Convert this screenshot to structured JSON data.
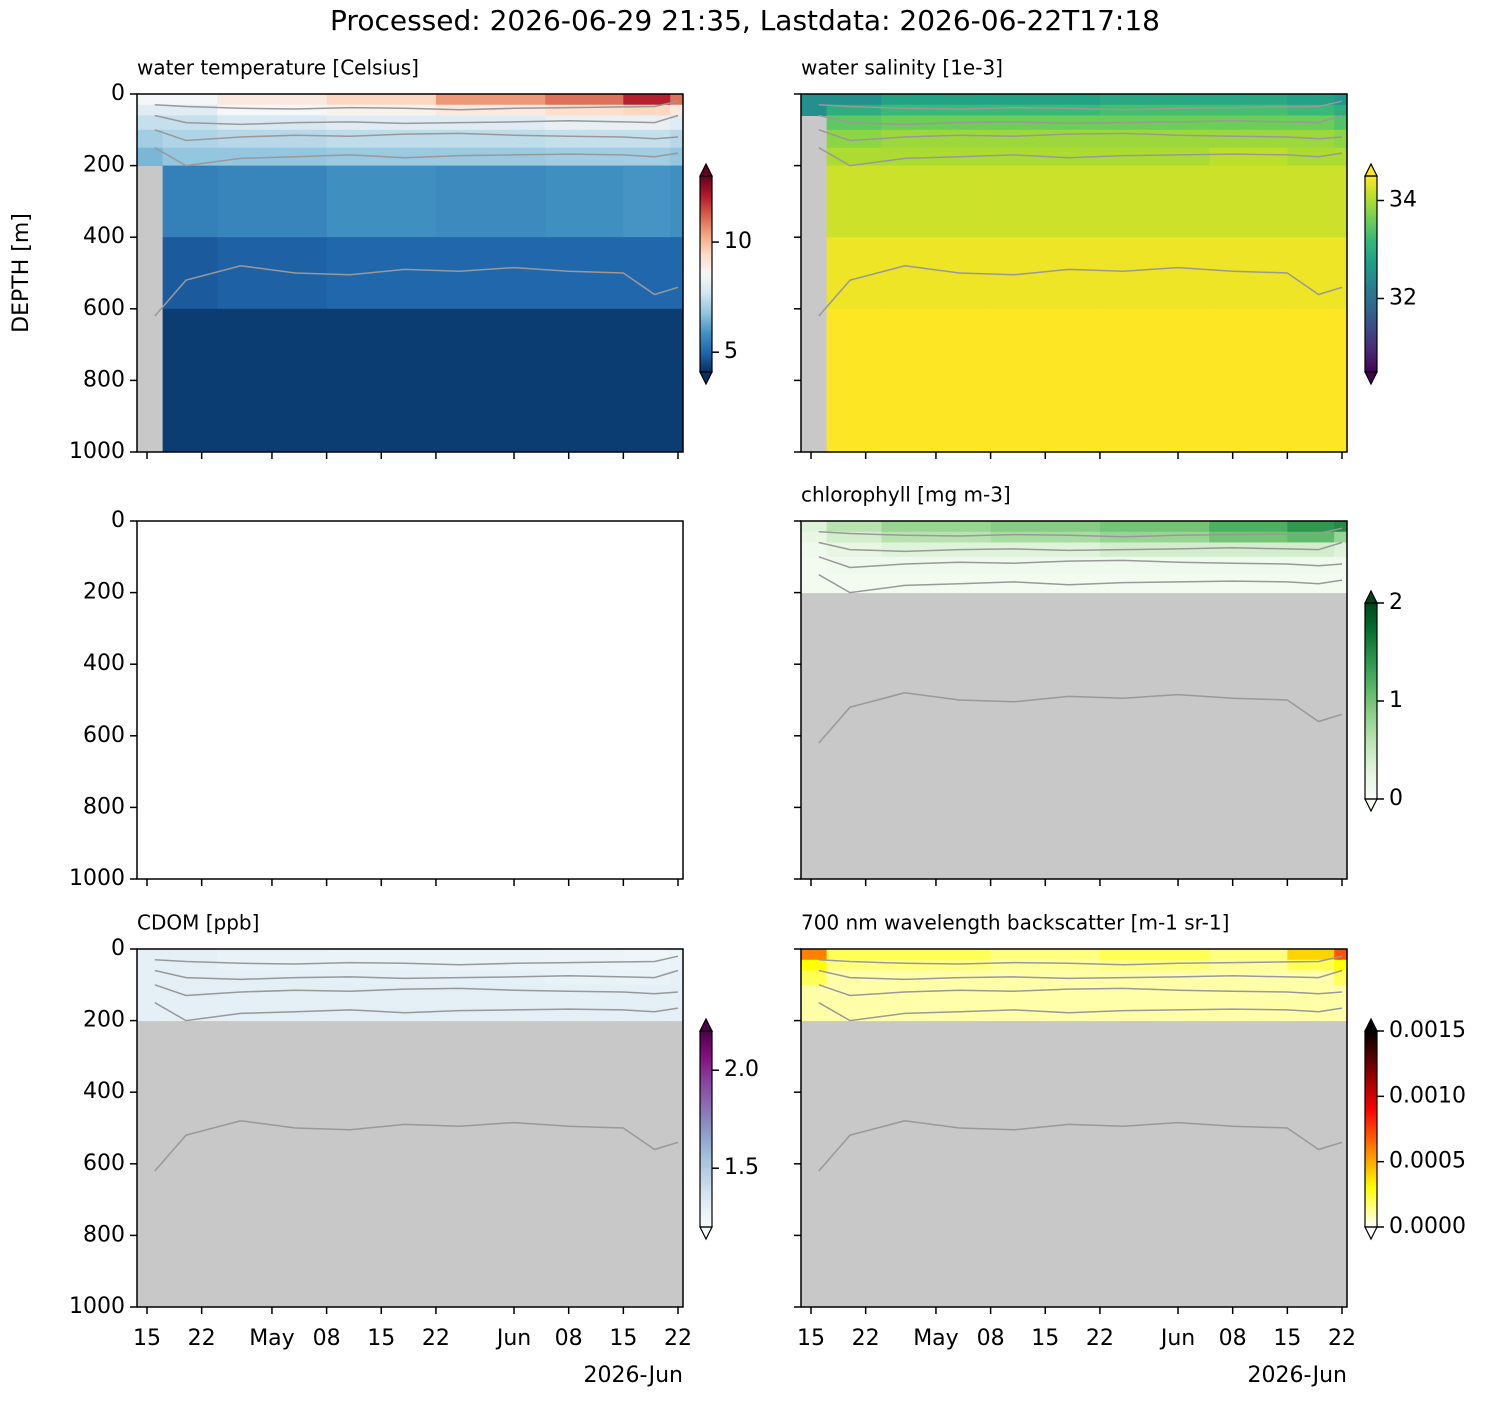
{
  "figure": {
    "title": "Processed: 2026-06-29 21:35, Lastdata: 2026-06-22T17:18",
    "ylabel": "DEPTH [m]",
    "x_offset_label": "2026-Jun",
    "xlim": [
      "2026-04-13T17:15",
      "2026-06-22T15:20"
    ],
    "xticks": [
      {
        "value": "2026-04-15",
        "label": "15"
      },
      {
        "value": "2026-04-22",
        "label": "22"
      },
      {
        "value": "2026-05-01",
        "label": "May"
      },
      {
        "value": "2026-05-08",
        "label": "08"
      },
      {
        "value": "2026-05-15",
        "label": "15"
      },
      {
        "value": "2026-05-22",
        "label": "22"
      },
      {
        "value": "2026-06-01",
        "label": "Jun"
      },
      {
        "value": "2026-06-08",
        "label": "08"
      },
      {
        "value": "2026-06-15",
        "label": "15"
      },
      {
        "value": "2026-06-22",
        "label": "22"
      }
    ],
    "ylim": [
      1000,
      0
    ],
    "yticks": [
      0,
      200,
      400,
      600,
      800,
      1000
    ],
    "x_edges": [
      "2026-04-13T17:15",
      "2026-04-17",
      "2026-04-24",
      "2026-05-08",
      "2026-05-22",
      "2026-06-05",
      "2026-06-15",
      "2026-06-21",
      "2026-06-22T15:20"
    ],
    "depth_edges": [
      0,
      30,
      60,
      100,
      150,
      200,
      400,
      600,
      1000
    ],
    "contour_color": "#999999",
    "contour_x": [
      "2026-04-16",
      "2026-04-20",
      "2026-04-27",
      "2026-05-04",
      "2026-05-11",
      "2026-05-18",
      "2026-05-25",
      "2026-06-01",
      "2026-06-08",
      "2026-06-15",
      "2026-06-19",
      "2026-06-22"
    ],
    "contours": [
      [
        30,
        35,
        40,
        42,
        38,
        40,
        44,
        40,
        38,
        36,
        35,
        20
      ],
      [
        60,
        80,
        85,
        80,
        78,
        82,
        80,
        78,
        75,
        78,
        80,
        60
      ],
      [
        100,
        130,
        120,
        115,
        118,
        112,
        110,
        115,
        118,
        120,
        125,
        120
      ],
      [
        150,
        200,
        180,
        175,
        170,
        178,
        172,
        170,
        168,
        170,
        175,
        165
      ],
      [
        620,
        520,
        480,
        500,
        505,
        490,
        495,
        485,
        495,
        500,
        560,
        540
      ]
    ]
  },
  "chart_data": [
    {
      "type": "heatmap",
      "title": "water temperature [Celsius]",
      "facecolor": "#c8c8c8",
      "extend": "both",
      "colormap": [
        "#053061",
        "#2166ac",
        "#4393c3",
        "#92c5de",
        "#d1e5f0",
        "#f7f7f7",
        "#fddbc7",
        "#f4a582",
        "#d6604d",
        "#b2182b",
        "#67001f"
      ],
      "clim": [
        4.1,
        13
      ],
      "cticks": [
        5,
        10
      ],
      "z": [
        [
          8.5,
          8.5,
          9,
          9.5,
          10.5,
          11,
          12,
          11
        ],
        [
          8,
          8,
          8.5,
          8.7,
          9,
          9.3,
          9.5,
          9
        ],
        [
          7.5,
          7.5,
          7.8,
          8,
          8,
          8.2,
          8.2,
          8
        ],
        [
          7,
          7.2,
          7.3,
          7.4,
          7.4,
          7.5,
          7.5,
          7.3
        ],
        [
          6.5,
          6.8,
          6.8,
          6.9,
          6.9,
          7,
          7,
          6.8
        ],
        [
          null,
          5.5,
          5.6,
          5.8,
          5.7,
          5.8,
          5.9,
          5.8
        ],
        [
          null,
          4.8,
          4.9,
          5,
          5,
          5,
          5,
          5
        ],
        [
          null,
          4.3,
          4.3,
          4.3,
          4.3,
          4.3,
          4.3,
          4.3
        ]
      ]
    },
    {
      "type": "heatmap",
      "title": "water salinity [1e-3]",
      "facecolor": "#c8c8c8",
      "extend": "both",
      "colormap": [
        "#440154",
        "#482878",
        "#3e4989",
        "#31688e",
        "#26828e",
        "#1f9e89",
        "#35b779",
        "#6ece58",
        "#b5de2b",
        "#fde725"
      ],
      "clim": [
        30.5,
        34.5
      ],
      "cticks": [
        32,
        34
      ],
      "z": [
        [
          32.5,
          32.5,
          32.8,
          32.8,
          32.9,
          32.9,
          32.8,
          32.6
        ],
        [
          32.5,
          33,
          33.2,
          33.2,
          33.3,
          33.3,
          33.2,
          33
        ],
        [
          null,
          33.5,
          33.6,
          33.6,
          33.6,
          33.6,
          33.6,
          33.4
        ],
        [
          null,
          33.8,
          33.9,
          33.9,
          33.9,
          33.9,
          33.9,
          33.8
        ],
        [
          null,
          34,
          34,
          34,
          34,
          34.1,
          34,
          34
        ],
        [
          null,
          34.2,
          34.2,
          34.2,
          34.2,
          34.2,
          34.2,
          34.2
        ],
        [
          null,
          34.4,
          34.4,
          34.4,
          34.4,
          34.4,
          34.4,
          34.4
        ],
        [
          null,
          34.6,
          34.6,
          34.6,
          34.6,
          34.6,
          34.6,
          34.6
        ]
      ]
    },
    {
      "type": "heatmap",
      "facecolor": "#ffffff"
    },
    {
      "type": "heatmap",
      "title": "chlorophyll [mg m-3]",
      "facecolor": "#c8c8c8",
      "extend": "both",
      "colormap": [
        "#f7fcf5",
        "#e5f5e0",
        "#c7e9c0",
        "#a1d99b",
        "#74c476",
        "#41ab5d",
        "#238b45",
        "#006d2c",
        "#00441b"
      ],
      "clim": [
        0,
        2
      ],
      "cticks": [
        0,
        1,
        2
      ],
      "z": [
        [
          0.3,
          0.6,
          0.8,
          0.9,
          1.0,
          1.2,
          1.4,
          1.5
        ],
        [
          0.2,
          0.4,
          0.6,
          0.7,
          0.8,
          1.0,
          1.1,
          0.8
        ],
        [
          0.1,
          0.2,
          0.3,
          0.3,
          0.4,
          0.4,
          0.4,
          0.3
        ],
        [
          0.05,
          0.1,
          0.1,
          0.1,
          0.1,
          0.1,
          0.1,
          0.1
        ],
        [
          0.05,
          0.05,
          0.05,
          0.05,
          0.05,
          0.05,
          0.05,
          0.05
        ],
        [
          null,
          null,
          null,
          null,
          null,
          null,
          null,
          null
        ],
        [
          null,
          null,
          null,
          null,
          null,
          null,
          null,
          null
        ],
        [
          null,
          null,
          null,
          null,
          null,
          null,
          null,
          null
        ]
      ]
    },
    {
      "type": "heatmap",
      "title": "CDOM [ppb]",
      "facecolor": "#c8c8c8",
      "extend": "both",
      "colormap": [
        "#f7fcfd",
        "#e0ecf4",
        "#bfd3e6",
        "#9ebcda",
        "#8c96c6",
        "#8c6bb1",
        "#88419d",
        "#810f7c",
        "#4d004b"
      ],
      "clim": [
        1.2,
        2.2
      ],
      "cticks": [
        1.5,
        {
          "value": 2,
          "label": "2.0"
        }
      ],
      "z": [
        [
          1.3,
          1.3,
          1.28,
          1.27,
          1.27,
          1.26,
          1.25,
          1.27
        ],
        [
          1.3,
          1.3,
          1.28,
          1.28,
          1.27,
          1.27,
          1.26,
          1.27
        ],
        [
          1.3,
          1.3,
          1.3,
          1.29,
          1.29,
          1.28,
          1.28,
          1.29
        ],
        [
          1.3,
          1.3,
          1.3,
          1.3,
          1.3,
          1.3,
          1.3,
          1.3
        ],
        [
          1.3,
          1.3,
          1.3,
          1.3,
          1.3,
          1.3,
          1.3,
          1.3
        ],
        [
          null,
          null,
          null,
          null,
          null,
          null,
          null,
          null
        ],
        [
          null,
          null,
          null,
          null,
          null,
          null,
          null,
          null
        ],
        [
          null,
          null,
          null,
          null,
          null,
          null,
          null,
          null
        ]
      ]
    },
    {
      "type": "heatmap",
      "title": "700 nm wavelength backscatter [m-1 sr-1]",
      "facecolor": "#c8c8c8",
      "extend": "both",
      "colormap": [
        "#ffffff",
        "#ffff80",
        "#ffff00",
        "#ffbf00",
        "#ff8000",
        "#ff4000",
        "#ff0000",
        "#bf0000",
        "#800000",
        "#400000",
        "#000000"
      ],
      "clim": [
        0,
        0.0015
      ],
      "cticks": [
        {
          "value": 0,
          "label": "0.0000"
        },
        {
          "value": 0.0005,
          "label": "0.0005"
        },
        {
          "value": 0.001,
          "label": "0.0010"
        },
        {
          "value": 0.0015,
          "label": "0.0015"
        }
      ],
      "z": [
        [
          0.0006,
          0.0002,
          0.0002,
          0.00015,
          0.0002,
          0.00015,
          0.0004,
          0.0007
        ],
        [
          0.0003,
          0.00015,
          0.00015,
          0.00012,
          0.00015,
          0.00012,
          0.0002,
          0.0003
        ],
        [
          0.0002,
          0.0001,
          0.0001,
          0.0001,
          0.0001,
          0.0001,
          0.0001,
          0.0002
        ],
        [
          0.0001,
          0.0001,
          0.0001,
          0.0001,
          0.0001,
          0.0001,
          0.0001,
          0.0001
        ],
        [
          0.0001,
          0.0001,
          0.0001,
          0.0001,
          0.0001,
          0.0001,
          0.0001,
          0.0001
        ],
        [
          null,
          null,
          null,
          null,
          null,
          null,
          null,
          null
        ],
        [
          null,
          null,
          null,
          null,
          null,
          null,
          null,
          null
        ],
        [
          null,
          null,
          null,
          null,
          null,
          null,
          null,
          null
        ]
      ]
    }
  ]
}
